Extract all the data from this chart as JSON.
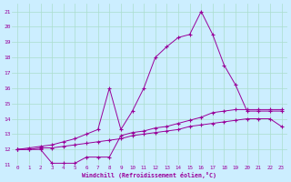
{
  "xlabel": "Windchill (Refroidissement éolien,°C)",
  "background_color": "#cceeff",
  "grid_color": "#aaddcc",
  "line_color": "#990099",
  "xlim": [
    -0.5,
    23.5
  ],
  "ylim": [
    11,
    21.5
  ],
  "yticks": [
    11,
    12,
    13,
    14,
    15,
    16,
    17,
    18,
    19,
    20,
    21
  ],
  "xticks": [
    0,
    1,
    2,
    3,
    4,
    5,
    6,
    7,
    8,
    9,
    10,
    11,
    12,
    13,
    14,
    15,
    16,
    17,
    18,
    19,
    20,
    21,
    22,
    23
  ],
  "series1_x": [
    0,
    1,
    2,
    3,
    4,
    5,
    6,
    7,
    8,
    9,
    10,
    11,
    12,
    13,
    14,
    15,
    16,
    17,
    18,
    19,
    20,
    21,
    22,
    23
  ],
  "series1_y": [
    12.0,
    12.0,
    12.1,
    12.1,
    12.2,
    12.3,
    12.4,
    12.5,
    12.6,
    12.7,
    12.9,
    13.0,
    13.1,
    13.2,
    13.3,
    13.5,
    13.6,
    13.7,
    13.8,
    13.9,
    14.0,
    14.0,
    14.0,
    13.5
  ],
  "series2_x": [
    0,
    1,
    2,
    3,
    4,
    5,
    6,
    7,
    8,
    9,
    10,
    11,
    12,
    13,
    14,
    15,
    16,
    17,
    18,
    19,
    20,
    21,
    22,
    23
  ],
  "series2_y": [
    12.0,
    12.0,
    12.0,
    11.1,
    11.1,
    11.1,
    11.5,
    11.5,
    11.5,
    12.9,
    13.1,
    13.2,
    13.4,
    13.5,
    13.7,
    13.9,
    14.1,
    14.4,
    14.5,
    14.6,
    14.6,
    14.6,
    14.6,
    14.6
  ],
  "series3_x": [
    0,
    1,
    2,
    3,
    4,
    5,
    6,
    7,
    8,
    9,
    10,
    11,
    12,
    13,
    14,
    15,
    16,
    17,
    18,
    19,
    20,
    21,
    22,
    23
  ],
  "series3_y": [
    12.0,
    12.1,
    12.2,
    12.3,
    12.5,
    12.7,
    13.0,
    13.3,
    16.0,
    13.3,
    14.5,
    16.0,
    18.0,
    18.7,
    19.3,
    19.5,
    21.0,
    19.5,
    17.5,
    16.2,
    14.5,
    14.5,
    14.5,
    14.5
  ]
}
